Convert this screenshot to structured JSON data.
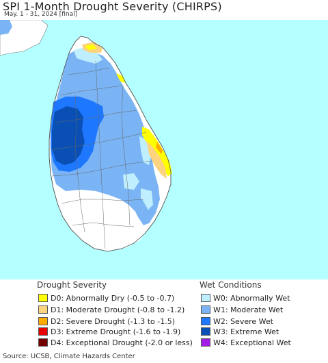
{
  "header": {
    "title": "SPI 1-Month Drought Severity (CHIRPS)",
    "subtitle": "May. 1 - 31, 2024 [final]"
  },
  "legend": {
    "drought": {
      "title": "Drought Severity",
      "items": [
        {
          "label": "D0: Abnormally Dry (-0.5 to -0.7)",
          "color": "#ffff00"
        },
        {
          "label": "D1: Moderate Drought (-0.8 to -1.2)",
          "color": "#fcd37f"
        },
        {
          "label": "D2: Severe Drought (-1.3 to -1.5)",
          "color": "#ffaa00"
        },
        {
          "label": "D3: Extreme Drought (-1.6 to -1.9)",
          "color": "#e60000"
        },
        {
          "label": "D4: Exceptional Drought (-2.0 or less)",
          "color": "#730000"
        }
      ]
    },
    "wet": {
      "title": "Wet Conditions",
      "items": [
        {
          "label": "W0: Abnormally Wet",
          "color": "#bfefff"
        },
        {
          "label": "W1: Moderate Wet",
          "color": "#7ab4f5"
        },
        {
          "label": "W2: Severe Wet",
          "color": "#1e78ff"
        },
        {
          "label": "W3: Extreme Wet",
          "color": "#0a50b4"
        },
        {
          "label": "W4: Exceptional Wet",
          "color": "#a01ee6"
        }
      ]
    }
  },
  "map": {
    "ocean_color": "#b4ffff",
    "land_color": "#ffffff"
  },
  "footer": {
    "source": "Source: UCSB, Climate Hazards Center"
  }
}
